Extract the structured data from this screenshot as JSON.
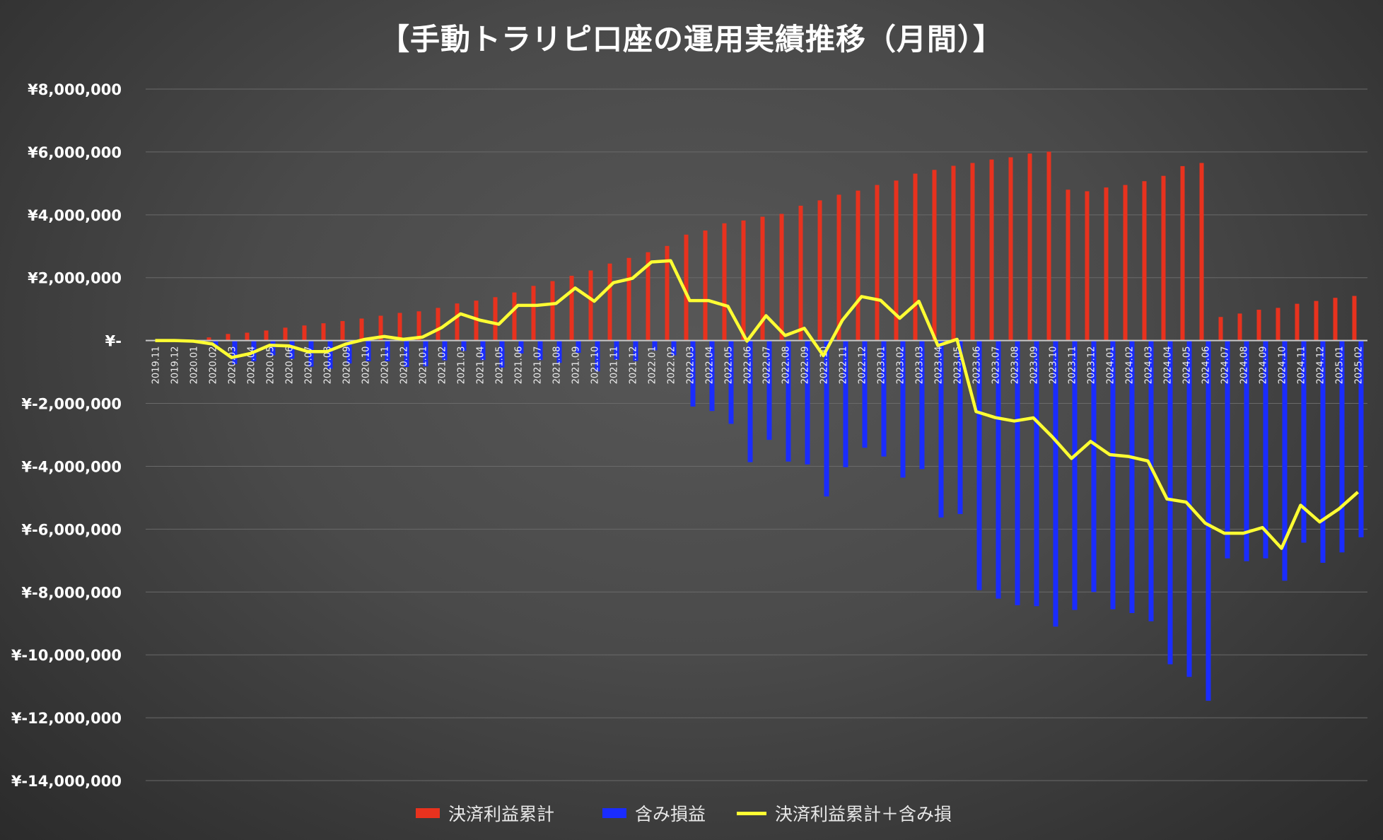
{
  "chart_data": {
    "type": "bar+line",
    "title": "【手動トラリピ口座の運用実績推移（月間）】",
    "ylim": [
      -14000000,
      8000000
    ],
    "ytick_step": 2000000,
    "ytick_labels": [
      "¥8,000,000",
      "¥6,000,000",
      "¥4,000,000",
      "¥2,000,000",
      "¥-",
      "¥-2,000,000",
      "¥-4,000,000",
      "¥-6,000,000",
      "¥-8,000,000",
      "¥-10,000,000",
      "¥-12,000,000",
      "¥-14,000,000"
    ],
    "grid": true,
    "legend_position": "bottom",
    "categories": [
      "2019.11",
      "2019.12",
      "2020.01",
      "2020.02",
      "2020.03",
      "2020.04",
      "2020.05",
      "2020.06",
      "2020.07",
      "2020.08",
      "2020.09",
      "2020.10",
      "2020.11",
      "2020.12",
      "2021.01",
      "2021.02",
      "2021.03",
      "2021.04",
      "2021.05",
      "2021.06",
      "2021.07",
      "2021.08",
      "2021.09",
      "2021.10",
      "2021.11",
      "2021.12",
      "2022.01",
      "2022.02",
      "2022.03",
      "2022.04",
      "2022.05",
      "2022.06",
      "2022.07",
      "2022.08",
      "2022.09",
      "2022.10",
      "2022.11",
      "2022.12",
      "2023.01",
      "2023.02",
      "2023.03",
      "2023.04",
      "2023.05",
      "2023.06",
      "2023.07",
      "2023.08",
      "2023.09",
      "2023.10",
      "2023.11",
      "2023.12",
      "2024.01",
      "2024.02",
      "2024.03",
      "2024.04",
      "2024.05",
      "2024.06",
      "2024.07",
      "2024.08",
      "2024.09",
      "2024.10",
      "2024.11",
      "2024.12",
      "2025.01",
      "2025.02"
    ],
    "series": [
      {
        "name": "決済利益累計",
        "type": "bar",
        "color": "#e8321e",
        "values": [
          0,
          0,
          0,
          100000,
          210000,
          250000,
          320000,
          410000,
          480000,
          550000,
          620000,
          700000,
          790000,
          880000,
          930000,
          1040000,
          1180000,
          1270000,
          1380000,
          1530000,
          1740000,
          1890000,
          2060000,
          2230000,
          2450000,
          2630000,
          2810000,
          3010000,
          3370000,
          3500000,
          3730000,
          3820000,
          3940000,
          4030000,
          4290000,
          4460000,
          4640000,
          4770000,
          4950000,
          5090000,
          5310000,
          5430000,
          5560000,
          5650000,
          5760000,
          5830000,
          5950000,
          6010000,
          4800000,
          4750000,
          4870000,
          4950000,
          5070000,
          5240000,
          5550000,
          5650000,
          750000,
          860000,
          980000,
          1040000,
          1170000,
          1260000,
          1360000,
          1420000
        ]
      },
      {
        "name": "含み損益",
        "type": "bar",
        "color": "#1a2cff",
        "values": [
          0,
          0,
          -20000,
          -210000,
          -750000,
          -660000,
          -470000,
          -580000,
          -830000,
          -900000,
          -730000,
          -660000,
          -660000,
          -840000,
          -820000,
          -630000,
          -330000,
          -620000,
          -860000,
          -410000,
          -620000,
          -710000,
          -390000,
          -980000,
          -610000,
          -650000,
          -310000,
          -470000,
          -2100000,
          -2240000,
          -2650000,
          -3870000,
          -3160000,
          -3850000,
          -3940000,
          -4960000,
          -4030000,
          -3410000,
          -3690000,
          -4360000,
          -4090000,
          -5630000,
          -5520000,
          -7940000,
          -8210000,
          -8420000,
          -8450000,
          -9100000,
          -8570000,
          -8000000,
          -8550000,
          -8670000,
          -8930000,
          -10300000,
          -10700000,
          -11460000,
          -6930000,
          -7020000,
          -6930000,
          -7640000,
          -6430000,
          -7070000,
          -6740000,
          -6260000
        ]
      },
      {
        "name": "決済利益累計＋含み損",
        "type": "line",
        "color": "#ffff33",
        "values": [
          0,
          0,
          -20000,
          -110000,
          -540000,
          -410000,
          -150000,
          -170000,
          -350000,
          -350000,
          -110000,
          40000,
          130000,
          40000,
          110000,
          410000,
          850000,
          650000,
          520000,
          1120000,
          1120000,
          1180000,
          1670000,
          1250000,
          1840000,
          1980000,
          2500000,
          2540000,
          1270000,
          1270000,
          1090000,
          -20000,
          790000,
          160000,
          390000,
          -480000,
          650000,
          1400000,
          1280000,
          710000,
          1250000,
          -160000,
          40000,
          -2260000,
          -2450000,
          -2560000,
          -2460000,
          -3070000,
          -3750000,
          -3210000,
          -3630000,
          -3690000,
          -3830000,
          -5040000,
          -5140000,
          -5810000,
          -6130000,
          -6130000,
          -5950000,
          -6610000,
          -5240000,
          -5770000,
          -5360000,
          -4820000
        ]
      }
    ]
  }
}
